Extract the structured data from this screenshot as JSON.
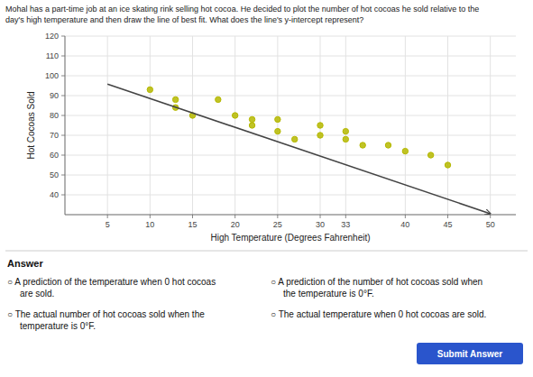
{
  "chart_data": {
    "type": "scatter",
    "title": "Mohal has a part-time job at an ice skating rink selling hot cocoa. He decided to plot the number of hot cocoas he sold relative to the",
    "subtitle": "day's high temperature and then draw the line of best fit. What does the line's y-intercept represent?",
    "x_label": "High Temperature (Degrees Fahrenheit)",
    "y_label": "Hot Cocoas Sold",
    "xlim": [
      0,
      53
    ],
    "ylim": [
      30,
      120
    ],
    "xticks": [
      5,
      10,
      15,
      20,
      25,
      30,
      33,
      40,
      45,
      50
    ],
    "yticks": [
      40,
      50,
      60,
      70,
      80,
      90,
      100,
      110,
      120
    ],
    "grid": true,
    "series": [
      {
        "type": "scatter",
        "marker": "circle",
        "color": "#b5b800",
        "x": [
          10,
          13,
          13,
          15,
          18,
          20,
          22,
          22,
          25,
          25,
          27,
          30,
          30,
          33,
          33,
          35,
          38,
          40,
          43,
          45
        ],
        "values": [
          93,
          88,
          84,
          80,
          88,
          80,
          78,
          75,
          78,
          72,
          68,
          75,
          70,
          72,
          68,
          65,
          65,
          62,
          60,
          55
        ]
      },
      {
        "type": "line",
        "marker": "arrow",
        "color": "#444444",
        "x": [
          5,
          50
        ],
        "values": [
          95.75,
          30.5
        ]
      }
    ],
    "annotations": [
      "Answer",
      "○  A prediction of the temperature when 0 hot cocoas",
      "are sold.",
      "○  A prediction of the number of hot cocoas sold when",
      "the temperature is 0°F.",
      "○  The actual number of hot cocoas sold when the",
      "temperature is 0°F.",
      "○  The actual temperature when 0 hot cocoas are sold.",
      "Submit Answer"
    ]
  }
}
